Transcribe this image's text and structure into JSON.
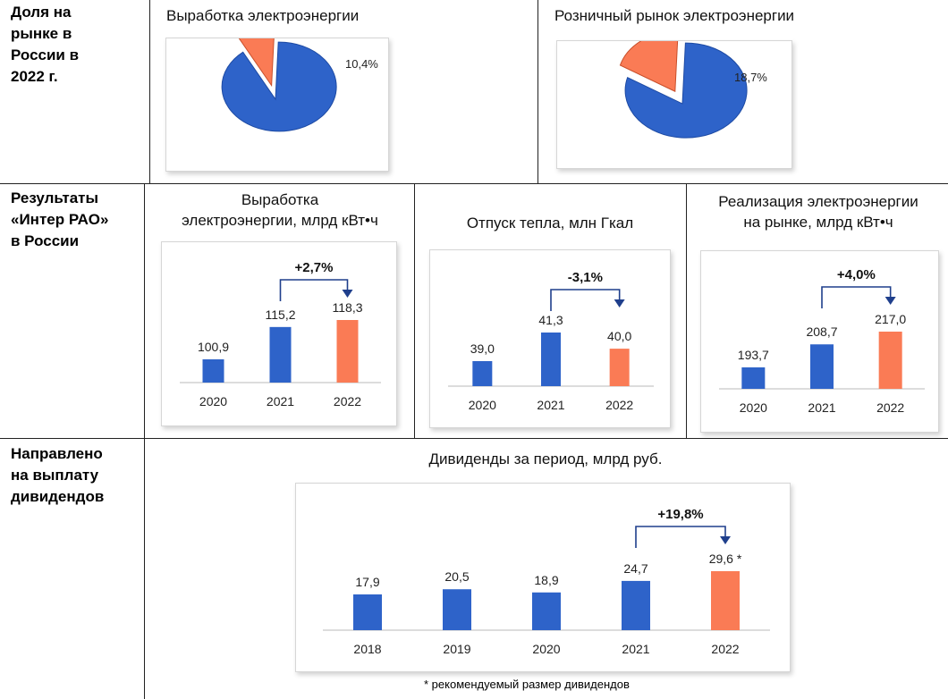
{
  "rows": [
    {
      "label": "Доля на\nрынке в\nРоссии в\n2022 г."
    },
    {
      "label": "Результаты\n«Интер РАО»\nв России"
    },
    {
      "label": "Направлено\nна выплату\nдивидендов"
    }
  ],
  "colors": {
    "blue": "#2e63c9",
    "orange": "#fa7b55",
    "arrow": "#1f3f8c"
  },
  "chart_data": [
    {
      "type": "pie",
      "title": "Выработка электроэнергии",
      "share": 10.4,
      "share_label": "10,4%"
    },
    {
      "type": "pie",
      "title": "Розничный рынок электроэнергии",
      "share": 18.7,
      "share_label": "18,7%"
    },
    {
      "type": "bar",
      "title": "Выработка\nэлектроэнергии, млрд кВт•ч",
      "categories": [
        "2020",
        "2021",
        "2022"
      ],
      "values": [
        100.9,
        115.2,
        118.3
      ],
      "labels": [
        "100,9",
        "115,2",
        "118,3"
      ],
      "change": "+2,7%"
    },
    {
      "type": "bar",
      "title": "Отпуск тепла, млн Гкал",
      "categories": [
        "2020",
        "2021",
        "2022"
      ],
      "values": [
        39.0,
        41.3,
        40.0
      ],
      "labels": [
        "39,0",
        "41,3",
        "40,0"
      ],
      "change": "-3,1%"
    },
    {
      "type": "bar",
      "title": "Реализация электроэнергии\nна рынке, млрд кВт•ч",
      "categories": [
        "2020",
        "2021",
        "2022"
      ],
      "values": [
        193.7,
        208.7,
        217.0
      ],
      "labels": [
        "193,7",
        "208,7",
        "217,0"
      ],
      "change": "+4,0%"
    },
    {
      "type": "bar",
      "title": "Дивиденды за период, млрд руб.",
      "categories": [
        "2018",
        "2019",
        "2020",
        "2021",
        "2022"
      ],
      "values": [
        17.9,
        20.5,
        18.9,
        24.7,
        29.6
      ],
      "labels": [
        "17,9",
        "20,5",
        "18,9",
        "24,7",
        "29,6 *"
      ],
      "change": "+19,8%"
    }
  ],
  "footnote": "* рекомендуемый размер дивидендов"
}
